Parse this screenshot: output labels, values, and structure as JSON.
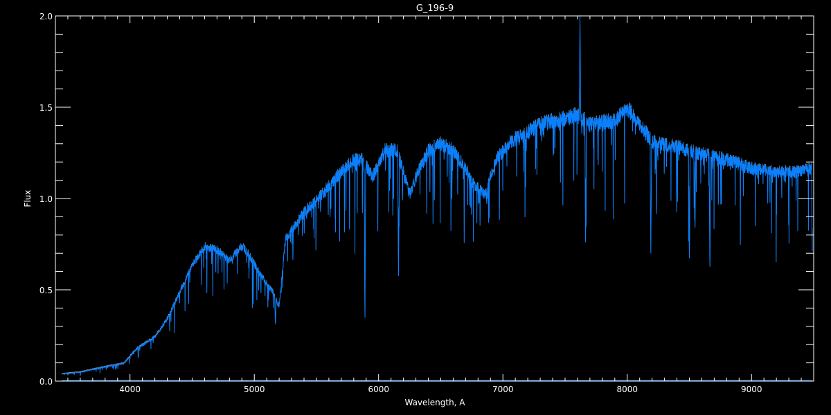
{
  "chart_data": {
    "type": "line",
    "title": "G_196-9",
    "xlabel": "Wavelength, A",
    "ylabel": "Flux",
    "xlim": [
      3400,
      9500
    ],
    "ylim": [
      0,
      2.0
    ],
    "x_ticks": [
      "4000",
      "5000",
      "6000",
      "7000",
      "8000",
      "9000"
    ],
    "y_ticks": [
      "0.0",
      "0.5",
      "1.0",
      "1.5",
      "2.0"
    ],
    "x_minor_step": 100,
    "y_minor_step": 0.1,
    "grid": false,
    "background_color": "#000000",
    "axis_color": "#ffffff",
    "series": [
      {
        "color": "#0a80ff",
        "continuum": [
          [
            3450,
            0.04
          ],
          [
            3600,
            0.05
          ],
          [
            3800,
            0.08
          ],
          [
            3950,
            0.1
          ],
          [
            4050,
            0.18
          ],
          [
            4200,
            0.25
          ],
          [
            4300,
            0.35
          ],
          [
            4400,
            0.5
          ],
          [
            4500,
            0.65
          ],
          [
            4600,
            0.76
          ],
          [
            4700,
            0.74
          ],
          [
            4800,
            0.68
          ],
          [
            4900,
            0.76
          ],
          [
            4950,
            0.72
          ],
          [
            5050,
            0.6
          ],
          [
            5150,
            0.5
          ],
          [
            5200,
            0.42
          ],
          [
            5250,
            0.8
          ],
          [
            5400,
            0.95
          ],
          [
            5500,
            1.02
          ],
          [
            5600,
            1.1
          ],
          [
            5700,
            1.18
          ],
          [
            5800,
            1.25
          ],
          [
            5870,
            1.25
          ],
          [
            5950,
            1.15
          ],
          [
            6050,
            1.3
          ],
          [
            6150,
            1.3
          ],
          [
            6250,
            1.05
          ],
          [
            6300,
            1.15
          ],
          [
            6400,
            1.3
          ],
          [
            6500,
            1.34
          ],
          [
            6600,
            1.3
          ],
          [
            6700,
            1.2
          ],
          [
            6750,
            1.12
          ],
          [
            6850,
            1.05
          ],
          [
            6950,
            1.25
          ],
          [
            7050,
            1.35
          ],
          [
            7150,
            1.38
          ],
          [
            7300,
            1.45
          ],
          [
            7500,
            1.48
          ],
          [
            7600,
            1.5
          ],
          [
            7700,
            1.45
          ],
          [
            7900,
            1.47
          ],
          [
            8000,
            1.54
          ],
          [
            8100,
            1.45
          ],
          [
            8200,
            1.35
          ],
          [
            8400,
            1.32
          ],
          [
            8600,
            1.28
          ],
          [
            8800,
            1.25
          ],
          [
            9000,
            1.2
          ],
          [
            9200,
            1.18
          ],
          [
            9400,
            1.18
          ],
          [
            9490,
            1.2
          ]
        ],
        "features": [
          [
            5170,
            0.3
          ],
          [
            5890,
            0.27
          ],
          [
            6160,
            0.52
          ],
          [
            6870,
            0.97
          ],
          [
            7620,
            2.0
          ],
          [
            7665,
            0.76
          ],
          [
            8190,
            0.7
          ],
          [
            8500,
            0.62
          ],
          [
            8545,
            0.8
          ],
          [
            8665,
            0.57
          ],
          [
            9490,
            0.62
          ]
        ]
      },
      {
        "color": "#0a80ff",
        "description_of_level": "near-zero error spectrum",
        "continuum": [
          [
            3450,
            0.0
          ],
          [
            9490,
            0.005
          ]
        ]
      }
    ]
  }
}
